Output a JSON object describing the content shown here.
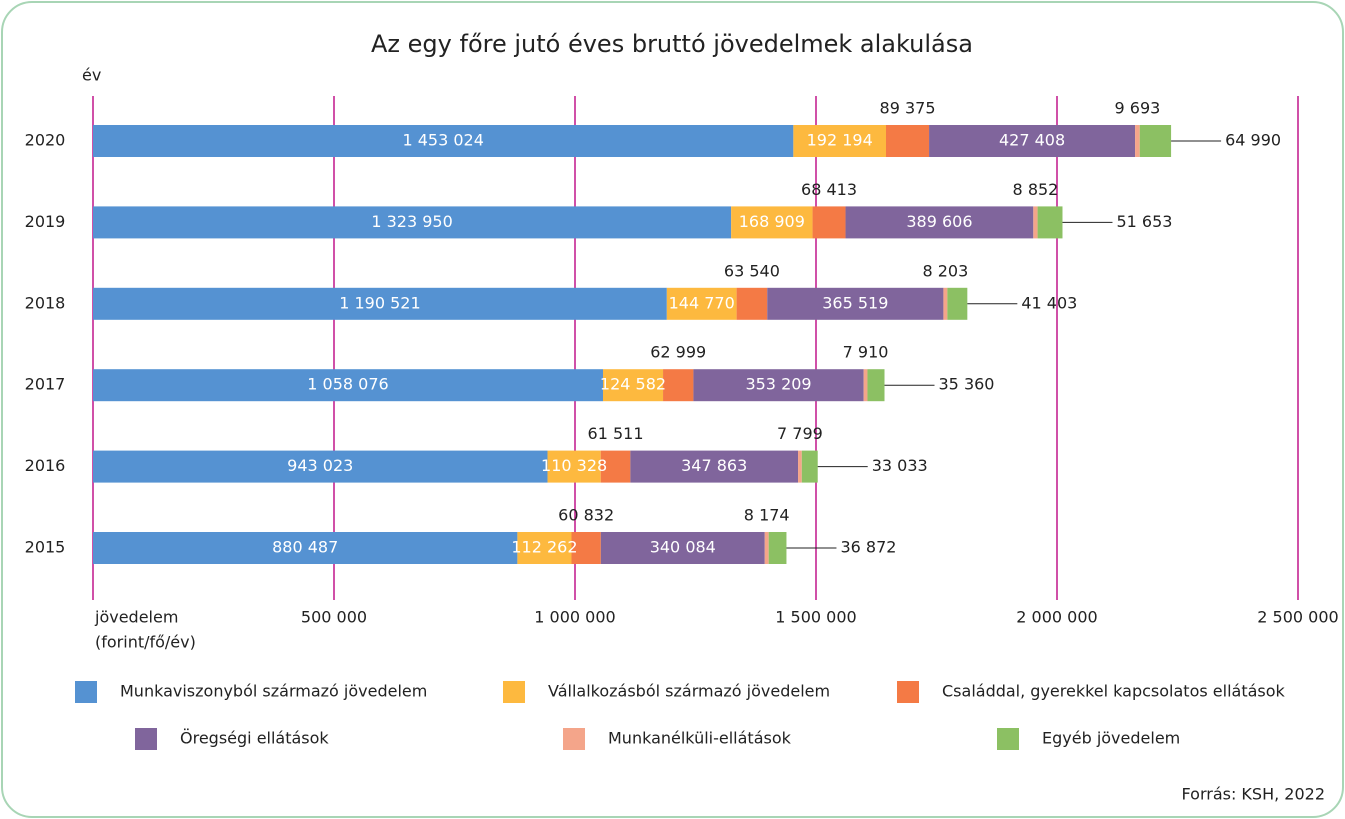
{
  "chart_data": {
    "type": "stacked-barh",
    "title": "Az egy főre jutó éves bruttó jövedelmek alakulása",
    "y_label": "év",
    "x_label": [
      "jövedelem",
      "(forint/fő/év)"
    ],
    "source": "Forrás: KSH, 2022",
    "categories": [
      "2020",
      "2019",
      "2018",
      "2017",
      "2016",
      "2015"
    ],
    "xlim": [
      0,
      2500000
    ],
    "xticks": [
      {
        "value": 500000,
        "label": "500 000"
      },
      {
        "value": 1000000,
        "label": "1 000 000"
      },
      {
        "value": 1500000,
        "label": "1 500 000"
      },
      {
        "value": 2000000,
        "label": "2 000 000"
      },
      {
        "value": 2500000,
        "label": "2 500 000"
      }
    ],
    "grid": true,
    "grid_color": "#c0168c",
    "series": [
      {
        "name": "Munkaviszonyból származó jövedelem",
        "color": "#5592d2",
        "values": [
          1453024,
          1323950,
          1190521,
          1058076,
          943023,
          880487
        ],
        "value_labels": [
          "1 453 024",
          "1 323 950",
          "1 190 521",
          "1 058 076",
          "943 023",
          "880 487"
        ]
      },
      {
        "name": "Vállalkozásból származó jövedelem",
        "color": "#fdb93f",
        "values": [
          192194,
          168909,
          144770,
          124582,
          110328,
          112262
        ],
        "value_labels": [
          "192 194",
          "168 909",
          "144 770",
          "124 582",
          "110 328",
          "112 262"
        ]
      },
      {
        "name": "Családdal, gyerekkel kapcsolatos ellátások",
        "color": "#f47a45",
        "values": [
          89375,
          68413,
          63540,
          62999,
          61511,
          60832
        ],
        "value_labels": [
          "89 375",
          "68 413",
          "63 540",
          "62 999",
          "61 511",
          "60 832"
        ]
      },
      {
        "name": "Öregségi ellátások",
        "color": "#80659c",
        "values": [
          427408,
          389606,
          365519,
          353209,
          347863,
          340084
        ],
        "value_labels": [
          "427 408",
          "389 606",
          "365 519",
          "353 209",
          "347 863",
          "340 084"
        ]
      },
      {
        "name": "Munkanélküli-ellátások",
        "color": "#f4a58a",
        "values": [
          9693,
          8852,
          8203,
          7910,
          7799,
          8174
        ],
        "value_labels": [
          "9 693",
          "8 852",
          "8 203",
          "7 910",
          "7 799",
          "8 174"
        ]
      },
      {
        "name": "Egyéb jövedelem",
        "color": "#8cc063",
        "values": [
          64990,
          51653,
          41403,
          35360,
          33033,
          36872
        ],
        "value_labels": [
          "64 990",
          "51 653",
          "41 403",
          "35 360",
          "33 033",
          "36 872"
        ]
      }
    ]
  }
}
